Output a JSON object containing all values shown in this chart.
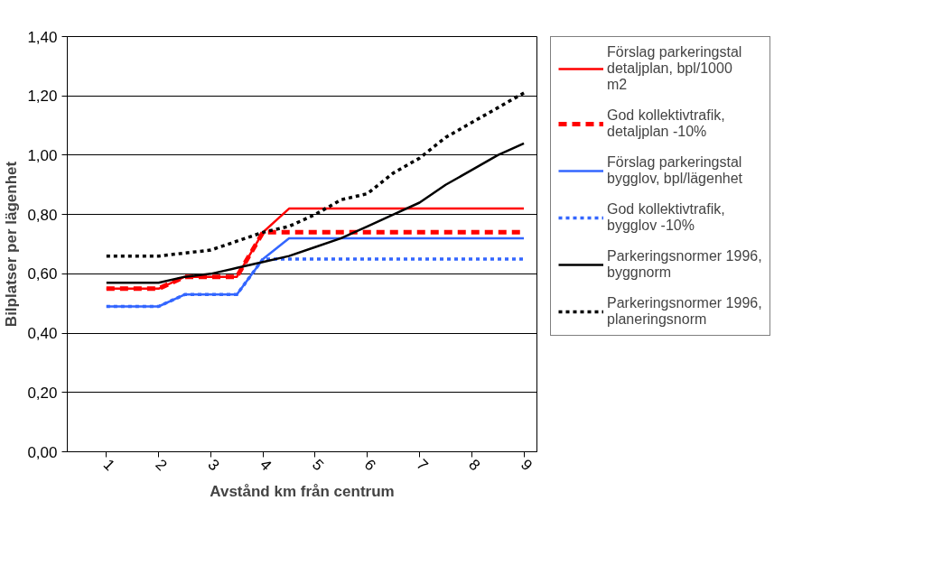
{
  "chart_data": {
    "type": "line",
    "xlabel": "Avstånd km från centrum",
    "ylabel": "Bilplatser per lägenhet",
    "x": [
      1,
      1.5,
      2,
      2.5,
      3,
      3.5,
      4,
      4.5,
      5,
      5.5,
      6,
      6.5,
      7,
      7.5,
      8,
      8.5,
      9
    ],
    "xlim": [
      0.25,
      9.25
    ],
    "xticks": [
      1,
      2,
      3,
      4,
      5,
      6,
      7,
      8,
      9
    ],
    "ylim": [
      0,
      1.4
    ],
    "yticks": [
      {
        "value": 0,
        "label": "0,00"
      },
      {
        "value": 0.2,
        "label": "0,20"
      },
      {
        "value": 0.4,
        "label": "0,40"
      },
      {
        "value": 0.6,
        "label": "0,60"
      },
      {
        "value": 0.8,
        "label": "0,80"
      },
      {
        "value": 1.0,
        "label": "1,00"
      },
      {
        "value": 1.2,
        "label": "1,20"
      },
      {
        "value": 1.4,
        "label": "1,40"
      }
    ],
    "grid": "y",
    "legend": "right",
    "marker": "none",
    "series": [
      {
        "name": "Förslag parkeringstal detaljplan, bpl/1000 m2",
        "color": "#ff0000",
        "line_style": "solid",
        "values": [
          0.55,
          0.55,
          0.55,
          0.59,
          0.59,
          0.59,
          0.74,
          0.82,
          0.82,
          0.82,
          0.82,
          0.82,
          0.82,
          0.82,
          0.82,
          0.82,
          0.82
        ]
      },
      {
        "name": "God kollektivtrafik, detaljplan -10%",
        "color": "#ff0000",
        "line_style": "dashed",
        "values": [
          0.55,
          0.55,
          0.55,
          0.59,
          0.59,
          0.59,
          0.74,
          0.74,
          0.74,
          0.74,
          0.74,
          0.74,
          0.74,
          0.74,
          0.74,
          0.74,
          0.74
        ]
      },
      {
        "name": "Förslag parkeringstal bygglov, bpl/lägenhet",
        "color": "#3366ff",
        "line_style": "solid",
        "values": [
          0.49,
          0.49,
          0.49,
          0.53,
          0.53,
          0.53,
          0.65,
          0.72,
          0.72,
          0.72,
          0.72,
          0.72,
          0.72,
          0.72,
          0.72,
          0.72,
          0.72
        ]
      },
      {
        "name": "God kollektivtrafik, bygglov -10%",
        "color": "#3366ff",
        "line_style": "dotted",
        "values": [
          0.49,
          0.49,
          0.49,
          0.53,
          0.53,
          0.53,
          0.65,
          0.65,
          0.65,
          0.65,
          0.65,
          0.65,
          0.65,
          0.65,
          0.65,
          0.65,
          0.65
        ]
      },
      {
        "name": "Parkeringsnormer 1996, byggnorm",
        "color": "#000000",
        "line_style": "solid",
        "values": [
          0.57,
          0.57,
          0.57,
          0.59,
          0.6,
          0.62,
          0.64,
          0.66,
          0.69,
          0.72,
          0.76,
          0.8,
          0.84,
          0.9,
          0.95,
          1.0,
          1.04
        ]
      },
      {
        "name": "Parkeringsnormer 1996, planeringsnorm",
        "color": "#000000",
        "line_style": "dotted",
        "values": [
          0.66,
          0.66,
          0.66,
          0.67,
          0.68,
          0.71,
          0.74,
          0.76,
          0.8,
          0.85,
          0.87,
          0.94,
          0.99,
          1.06,
          1.11,
          1.16,
          1.21
        ]
      }
    ]
  }
}
